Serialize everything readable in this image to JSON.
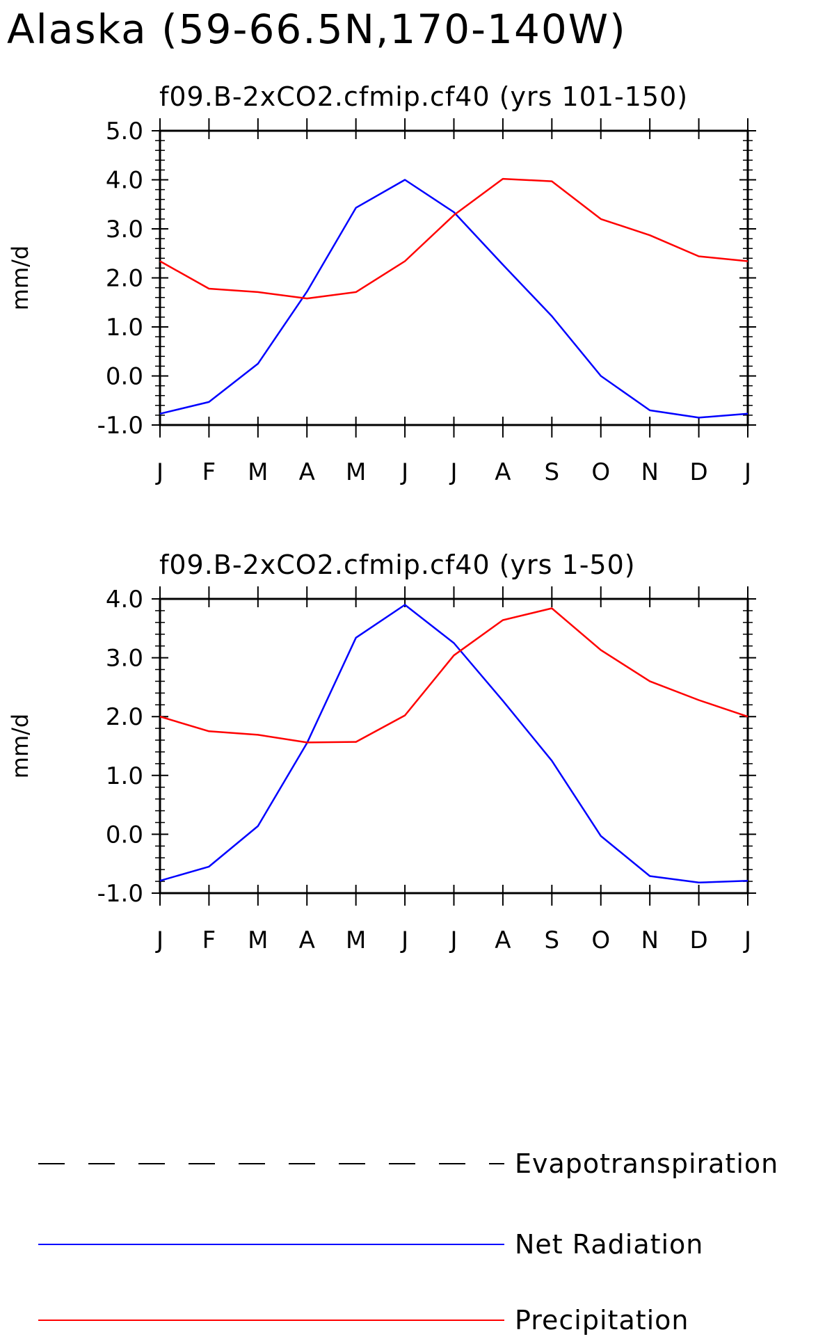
{
  "figure": {
    "title": "Alaska (59-66.5N,170-140W)"
  },
  "legend": {
    "entries": [
      {
        "label": "Evapotranspiration",
        "color": "#000000",
        "style": "dashed"
      },
      {
        "label": "Net Radiation",
        "color": "#0000ff",
        "style": "solid"
      },
      {
        "label": "Precipitation",
        "color": "#ff0000",
        "style": "solid"
      }
    ]
  },
  "chart_data": [
    {
      "type": "line",
      "title": "f09.B-2xCO2.cfmip.cf40 (yrs 101-150)",
      "xlabel": "",
      "ylabel": "mm/d",
      "categories": [
        "J",
        "F",
        "M",
        "A",
        "M",
        "J",
        "J",
        "A",
        "S",
        "O",
        "N",
        "D",
        "J"
      ],
      "ylim": [
        -1.0,
        5.0
      ],
      "yticks": [
        -1.0,
        0.0,
        1.0,
        2.0,
        3.0,
        4.0,
        5.0
      ],
      "ytick_labels": [
        "-1.0",
        "0.0",
        "1.0",
        "2.0",
        "3.0",
        "4.0",
        "5.0"
      ],
      "series": [
        {
          "name": "Net Radiation",
          "color": "#0000ff",
          "values": [
            -0.77,
            -0.53,
            0.25,
            1.72,
            3.43,
            4.0,
            3.34,
            2.27,
            1.22,
            0.0,
            -0.7,
            -0.85,
            -0.77
          ]
        },
        {
          "name": "Precipitation",
          "color": "#ff0000",
          "values": [
            2.34,
            1.78,
            1.71,
            1.58,
            1.71,
            2.34,
            3.28,
            4.02,
            3.97,
            3.2,
            2.87,
            2.44,
            2.34
          ]
        }
      ]
    },
    {
      "type": "line",
      "title": "f09.B-2xCO2.cfmip.cf40 (yrs 1-50)",
      "xlabel": "",
      "ylabel": "mm/d",
      "categories": [
        "J",
        "F",
        "M",
        "A",
        "M",
        "J",
        "J",
        "A",
        "S",
        "O",
        "N",
        "D",
        "J"
      ],
      "ylim": [
        -1.0,
        4.0
      ],
      "yticks": [
        -1.0,
        0.0,
        1.0,
        2.0,
        3.0,
        4.0
      ],
      "ytick_labels": [
        "-1.0",
        "0.0",
        "1.0",
        "2.0",
        "3.0",
        "4.0"
      ],
      "series": [
        {
          "name": "Net Radiation",
          "color": "#0000ff",
          "values": [
            -0.79,
            -0.55,
            0.14,
            1.55,
            3.34,
            3.9,
            3.25,
            2.27,
            1.25,
            -0.03,
            -0.71,
            -0.82,
            -0.79
          ]
        },
        {
          "name": "Precipitation",
          "color": "#ff0000",
          "values": [
            2.0,
            1.75,
            1.69,
            1.56,
            1.57,
            2.02,
            3.04,
            3.64,
            3.84,
            3.13,
            2.6,
            2.28,
            2.0
          ]
        }
      ]
    }
  ]
}
